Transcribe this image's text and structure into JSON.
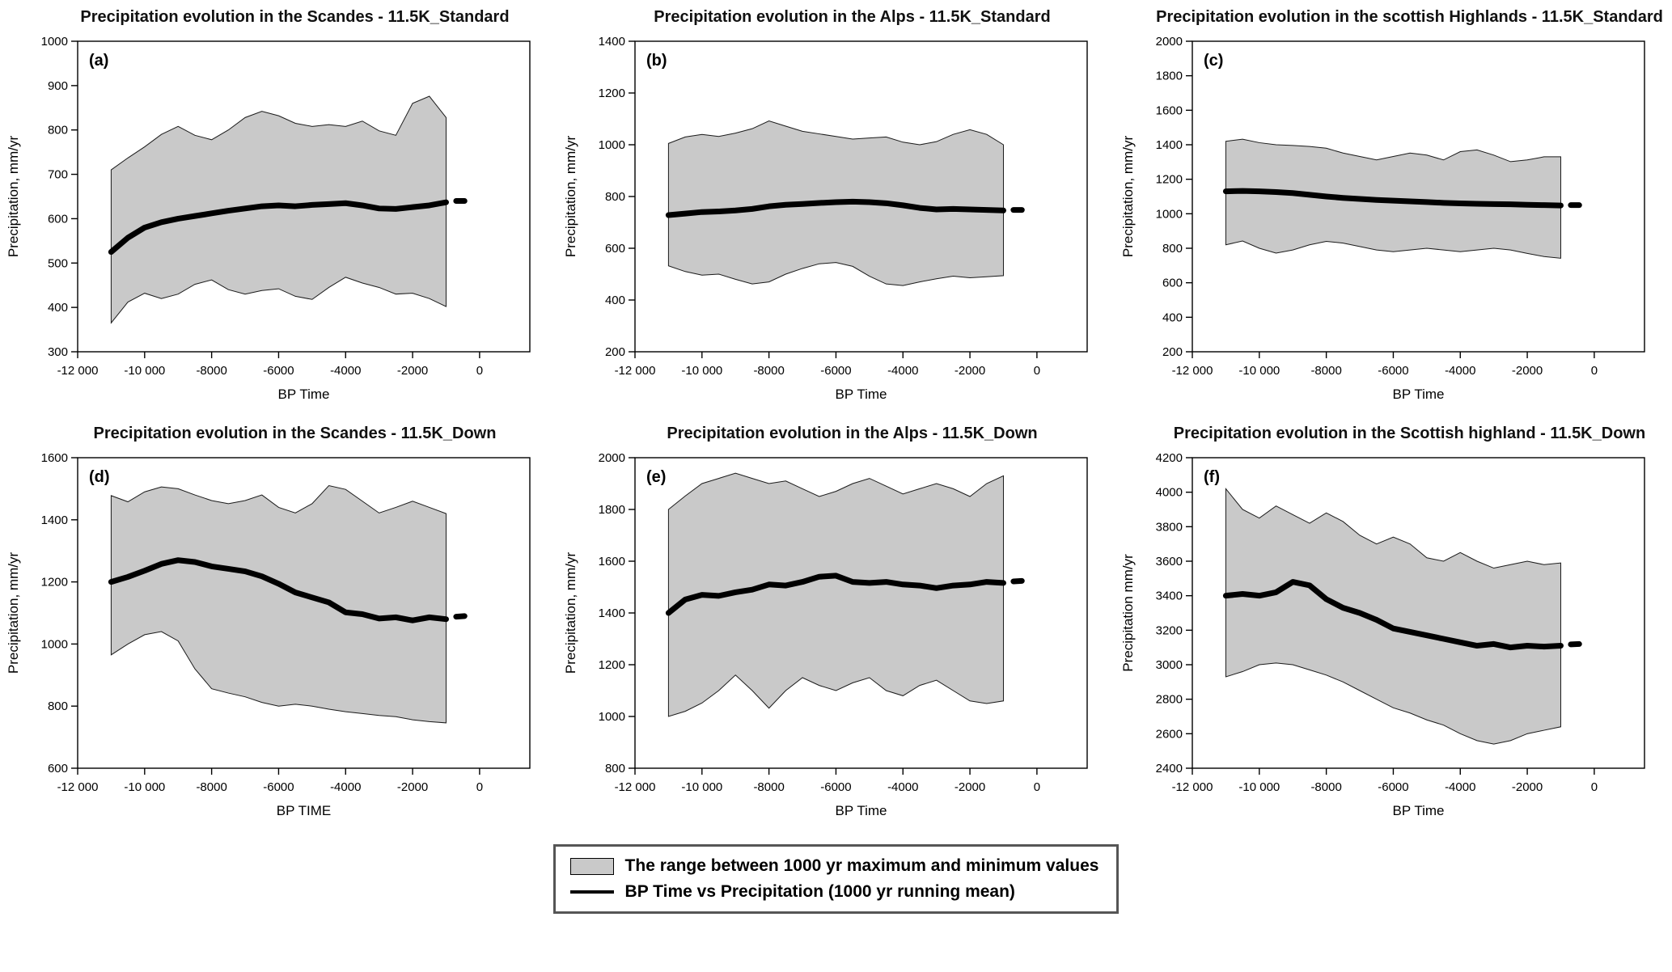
{
  "page": {
    "background": "#ffffff"
  },
  "legend": {
    "band_label": "The range between 1000 yr maximum and minimum values",
    "line_label": "BP Time vs Precipitation (1000 yr running mean)",
    "band_color": "#c9c9c9",
    "line_color": "#000000",
    "position": "bottom-center"
  },
  "chart_data": [
    {
      "type": "area",
      "panel": "(a)",
      "title": "Precipitation evolution in the Scandes - 11.5K_Standard",
      "xlabel": "BP Time",
      "ylabel": "Precipitation, mm/yr",
      "xlim": [
        -12000,
        1500
      ],
      "ylim": [
        300,
        1000
      ],
      "ytick_step": 100,
      "xticks": [
        -12000,
        -10000,
        -8000,
        -6000,
        -4000,
        -2000,
        0
      ],
      "xtick_labels": [
        "-12 000",
        "-10 000",
        "-8000",
        "-6000",
        "-4000",
        "-2000",
        "0"
      ],
      "grid": false,
      "band": {
        "x": [
          -11000,
          -10500,
          -10000,
          -9500,
          -9000,
          -8500,
          -8000,
          -7500,
          -7000,
          -6500,
          -6000,
          -5500,
          -5000,
          -4500,
          -4000,
          -3500,
          -3000,
          -2500,
          -2000,
          -1500,
          -1000
        ],
        "upper": [
          710,
          737,
          762,
          790,
          808,
          788,
          778,
          800,
          828,
          842,
          832,
          815,
          808,
          812,
          808,
          820,
          798,
          788,
          860,
          876,
          828
        ],
        "lower": [
          365,
          412,
          432,
          420,
          430,
          452,
          462,
          440,
          430,
          438,
          442,
          425,
          418,
          445,
          468,
          455,
          445,
          430,
          432,
          420,
          402
        ]
      },
      "mean": {
        "x": [
          -11000,
          -10500,
          -10000,
          -9500,
          -9000,
          -8500,
          -8000,
          -7500,
          -7000,
          -6500,
          -6000,
          -5500,
          -5000,
          -4500,
          -4000,
          -3500,
          -3000,
          -2500,
          -2000,
          -1500,
          -1000
        ],
        "y": [
          525,
          557,
          580,
          592,
          600,
          606,
          612,
          618,
          623,
          628,
          630,
          628,
          631,
          633,
          635,
          630,
          623,
          622,
          626,
          630,
          637
        ],
        "tail_x": [
          -700,
          -450
        ],
        "tail_y": [
          640,
          640
        ]
      }
    },
    {
      "type": "area",
      "panel": "(b)",
      "title": "Precipitation evolution in the Alps - 11.5K_Standard",
      "xlabel": "BP Time",
      "ylabel": "Precipitation, mm/yr",
      "xlim": [
        -12000,
        1500
      ],
      "ylim": [
        200,
        1400
      ],
      "ytick_step": 200,
      "xticks": [
        -12000,
        -10000,
        -8000,
        -6000,
        -4000,
        -2000,
        0
      ],
      "xtick_labels": [
        "-12 000",
        "-10 000",
        "-8000",
        "-6000",
        "-4000",
        "-2000",
        "0"
      ],
      "grid": false,
      "band": {
        "x": [
          -11000,
          -10500,
          -10000,
          -9500,
          -9000,
          -8500,
          -8000,
          -7500,
          -7000,
          -6500,
          -6000,
          -5500,
          -5000,
          -4500,
          -4000,
          -3500,
          -3000,
          -2500,
          -2000,
          -1500,
          -1000
        ],
        "upper": [
          1005,
          1030,
          1040,
          1032,
          1045,
          1062,
          1092,
          1072,
          1052,
          1042,
          1032,
          1022,
          1026,
          1030,
          1010,
          1000,
          1012,
          1040,
          1058,
          1040,
          1000
        ],
        "lower": [
          532,
          510,
          496,
          500,
          480,
          462,
          470,
          500,
          522,
          540,
          545,
          530,
          492,
          462,
          456,
          470,
          482,
          492,
          486,
          490,
          494
        ]
      },
      "mean": {
        "x": [
          -11000,
          -10500,
          -10000,
          -9500,
          -9000,
          -8500,
          -8000,
          -7500,
          -7000,
          -6500,
          -6000,
          -5500,
          -5000,
          -4500,
          -4000,
          -3500,
          -3000,
          -2500,
          -2000,
          -1500,
          -1000
        ],
        "y": [
          728,
          734,
          740,
          742,
          746,
          752,
          762,
          768,
          771,
          775,
          778,
          780,
          778,
          774,
          766,
          756,
          750,
          752,
          750,
          748,
          746
        ],
        "tail_x": [
          -700,
          -450
        ],
        "tail_y": [
          748,
          748
        ]
      }
    },
    {
      "type": "area",
      "panel": "(c)",
      "title": "Precipitation evolution in the scottish Highlands - 11.5K_Standard",
      "xlabel": "BP Time",
      "ylabel": "Precipitation, mm/yr",
      "xlim": [
        -12000,
        1500
      ],
      "ylim": [
        200,
        2000
      ],
      "ytick_step": 200,
      "xticks": [
        -12000,
        -10000,
        -8000,
        -6000,
        -4000,
        -2000,
        0
      ],
      "xtick_labels": [
        "-12 000",
        "-10 000",
        "-8000",
        "-6000",
        "-4000",
        "-2000",
        "0"
      ],
      "grid": false,
      "band": {
        "x": [
          -11000,
          -10500,
          -10000,
          -9500,
          -9000,
          -8500,
          -8000,
          -7500,
          -7000,
          -6500,
          -6000,
          -5500,
          -5000,
          -4500,
          -4000,
          -3500,
          -3000,
          -2500,
          -2000,
          -1500,
          -1000
        ],
        "upper": [
          1420,
          1432,
          1412,
          1400,
          1396,
          1390,
          1380,
          1352,
          1332,
          1312,
          1332,
          1352,
          1340,
          1312,
          1360,
          1370,
          1340,
          1302,
          1312,
          1330,
          1330
        ],
        "lower": [
          820,
          842,
          800,
          772,
          790,
          820,
          840,
          830,
          810,
          790,
          780,
          790,
          800,
          790,
          780,
          790,
          800,
          790,
          770,
          752,
          742
        ]
      },
      "mean": {
        "x": [
          -11000,
          -10500,
          -10000,
          -9500,
          -9000,
          -8500,
          -8000,
          -7500,
          -7000,
          -6500,
          -6000,
          -5500,
          -5000,
          -4500,
          -4000,
          -3500,
          -3000,
          -2500,
          -2000,
          -1500,
          -1000
        ],
        "y": [
          1130,
          1132,
          1130,
          1126,
          1120,
          1110,
          1100,
          1092,
          1086,
          1080,
          1076,
          1072,
          1068,
          1063,
          1060,
          1058,
          1056,
          1055,
          1052,
          1050,
          1048
        ],
        "tail_x": [
          -700,
          -450
        ],
        "tail_y": [
          1050,
          1050
        ]
      }
    },
    {
      "type": "area",
      "panel": "(d)",
      "title": "Precipitation evolution in the Scandes - 11.5K_Down",
      "xlabel": "BP TIME",
      "ylabel": "Precipitation, mm/yr",
      "xlim": [
        -12000,
        1500
      ],
      "ylim": [
        600,
        1600
      ],
      "ytick_step": 200,
      "xticks": [
        -12000,
        -10000,
        -8000,
        -6000,
        -4000,
        -2000,
        0
      ],
      "xtick_labels": [
        "-12 000",
        "-10 000",
        "-8000",
        "-6000",
        "-4000",
        "-2000",
        "0"
      ],
      "grid": false,
      "band": {
        "x": [
          -11000,
          -10500,
          -10000,
          -9500,
          -9000,
          -8500,
          -8000,
          -7500,
          -7000,
          -6500,
          -6000,
          -5500,
          -5000,
          -4500,
          -4000,
          -3500,
          -3000,
          -2500,
          -2000,
          -1500,
          -1000
        ],
        "upper": [
          1478,
          1458,
          1490,
          1506,
          1500,
          1480,
          1462,
          1452,
          1462,
          1480,
          1440,
          1422,
          1452,
          1510,
          1498,
          1460,
          1422,
          1440,
          1460,
          1440,
          1420
        ],
        "lower": [
          965,
          1000,
          1030,
          1040,
          1010,
          920,
          856,
          842,
          830,
          812,
          800,
          806,
          800,
          790,
          782,
          776,
          770,
          766,
          756,
          750,
          746
        ]
      },
      "mean": {
        "x": [
          -11000,
          -10500,
          -10000,
          -9500,
          -9000,
          -8500,
          -8000,
          -7500,
          -7000,
          -6500,
          -6000,
          -5500,
          -5000,
          -4500,
          -4000,
          -3500,
          -3000,
          -2500,
          -2000,
          -1500,
          -1000
        ],
        "y": [
          1200,
          1216,
          1236,
          1258,
          1270,
          1264,
          1250,
          1242,
          1234,
          1218,
          1194,
          1166,
          1150,
          1134,
          1102,
          1096,
          1082,
          1086,
          1076,
          1086,
          1080
        ],
        "tail_x": [
          -700,
          -450
        ],
        "tail_y": [
          1088,
          1090
        ]
      }
    },
    {
      "type": "area",
      "panel": "(e)",
      "title": "Precipitation evolution in the Alps - 11.5K_Down",
      "xlabel": "BP Time",
      "ylabel": "Precipitation, mm/yr",
      "xlim": [
        -12000,
        1500
      ],
      "ylim": [
        800,
        2000
      ],
      "ytick_step": 200,
      "xticks": [
        -12000,
        -10000,
        -8000,
        -6000,
        -4000,
        -2000,
        0
      ],
      "xtick_labels": [
        "-12 000",
        "-10 000",
        "-8000",
        "-6000",
        "-4000",
        "-2000",
        "0"
      ],
      "grid": false,
      "band": {
        "x": [
          -11000,
          -10500,
          -10000,
          -9500,
          -9000,
          -8500,
          -8000,
          -7500,
          -7000,
          -6500,
          -6000,
          -5500,
          -5000,
          -4500,
          -4000,
          -3500,
          -3000,
          -2500,
          -2000,
          -1500,
          -1000
        ],
        "upper": [
          1800,
          1852,
          1900,
          1920,
          1940,
          1920,
          1900,
          1910,
          1880,
          1850,
          1870,
          1900,
          1920,
          1890,
          1860,
          1880,
          1900,
          1880,
          1850,
          1900,
          1930
        ],
        "lower": [
          1000,
          1020,
          1052,
          1100,
          1160,
          1100,
          1032,
          1100,
          1150,
          1120,
          1100,
          1130,
          1150,
          1100,
          1080,
          1120,
          1140,
          1100,
          1060,
          1050,
          1060
        ]
      },
      "mean": {
        "x": [
          -11000,
          -10500,
          -10000,
          -9500,
          -9000,
          -8500,
          -8000,
          -7500,
          -7000,
          -6500,
          -6000,
          -5500,
          -5000,
          -4500,
          -4000,
          -3500,
          -3000,
          -2500,
          -2000,
          -1500,
          -1000
        ],
        "y": [
          1400,
          1452,
          1470,
          1466,
          1480,
          1490,
          1510,
          1506,
          1520,
          1540,
          1544,
          1520,
          1516,
          1520,
          1510,
          1506,
          1496,
          1506,
          1510,
          1520,
          1516
        ],
        "tail_x": [
          -700,
          -450
        ],
        "tail_y": [
          1522,
          1524
        ]
      }
    },
    {
      "type": "area",
      "panel": "(f)",
      "title": "Precipitation evolution in the Scottish highland - 11.5K_Down",
      "xlabel": "BP Time",
      "ylabel": "Precipitation mm/yr",
      "xlim": [
        -12000,
        1500
      ],
      "ylim": [
        2400,
        4200
      ],
      "ytick_step": 200,
      "xticks": [
        -12000,
        -10000,
        -8000,
        -6000,
        -4000,
        -2000,
        0
      ],
      "xtick_labels": [
        "-12 000",
        "-10 000",
        "-8000",
        "-6000",
        "-4000",
        "-2000",
        "0"
      ],
      "grid": false,
      "band": {
        "x": [
          -11000,
          -10500,
          -10000,
          -9500,
          -9000,
          -8500,
          -8000,
          -7500,
          -7000,
          -6500,
          -6000,
          -5500,
          -5000,
          -4500,
          -4000,
          -3500,
          -3000,
          -2500,
          -2000,
          -1500,
          -1000
        ],
        "upper": [
          4020,
          3900,
          3850,
          3920,
          3870,
          3820,
          3880,
          3830,
          3750,
          3700,
          3740,
          3700,
          3620,
          3600,
          3650,
          3600,
          3560,
          3580,
          3600,
          3580,
          3590
        ],
        "lower": [
          2930,
          2960,
          3000,
          3010,
          3000,
          2970,
          2940,
          2900,
          2850,
          2800,
          2750,
          2720,
          2680,
          2650,
          2600,
          2560,
          2540,
          2560,
          2600,
          2620,
          2640
        ]
      },
      "mean": {
        "x": [
          -11000,
          -10500,
          -10000,
          -9500,
          -9000,
          -8500,
          -8000,
          -7500,
          -7000,
          -6500,
          -6000,
          -5500,
          -5000,
          -4500,
          -4000,
          -3500,
          -3000,
          -2500,
          -2000,
          -1500,
          -1000
        ],
        "y": [
          3400,
          3410,
          3400,
          3420,
          3480,
          3460,
          3380,
          3330,
          3300,
          3260,
          3210,
          3190,
          3170,
          3150,
          3130,
          3110,
          3120,
          3100,
          3110,
          3105,
          3110
        ],
        "tail_x": [
          -700,
          -450
        ],
        "tail_y": [
          3118,
          3120
        ]
      }
    }
  ]
}
